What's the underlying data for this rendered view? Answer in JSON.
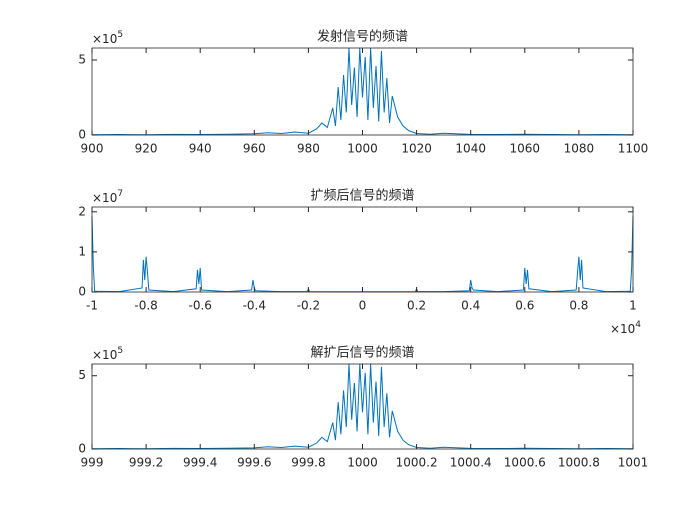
{
  "chart_data": [
    {
      "type": "line",
      "title": "发射信号的频谱",
      "color": "#0072bd",
      "x": [
        900,
        910,
        920,
        930,
        940,
        950,
        960,
        965,
        970,
        975,
        980,
        983,
        985,
        987,
        989,
        990,
        991,
        992,
        993,
        994,
        995,
        996,
        997,
        998,
        999,
        1000,
        1001,
        1002,
        1003,
        1004,
        1005,
        1006,
        1007,
        1008,
        1009,
        1010,
        1011,
        1013,
        1015,
        1017,
        1020,
        1025,
        1030,
        1040,
        1050,
        1060,
        1070,
        1080,
        1090,
        1100
      ],
      "values": [
        0.02,
        0.03,
        0.02,
        0.04,
        0.03,
        0.05,
        0.08,
        0.15,
        0.1,
        0.2,
        0.12,
        0.4,
        0.8,
        0.5,
        1.8,
        0.6,
        3.2,
        1.0,
        4.0,
        1.5,
        5.8,
        2.0,
        4.5,
        1.2,
        5.8,
        2.5,
        5.2,
        1.0,
        5.8,
        1.8,
        4.6,
        0.9,
        5.6,
        1.5,
        3.8,
        0.8,
        2.6,
        1.2,
        0.6,
        0.3,
        0.1,
        0.05,
        0.12,
        0.04,
        0.03,
        0.05,
        0.03,
        0.02,
        0.03,
        0.02
      ],
      "xlim": [
        900,
        1100
      ],
      "xticks": [
        900,
        920,
        940,
        960,
        980,
        1000,
        1020,
        1040,
        1060,
        1080,
        1100
      ],
      "ylim": [
        0,
        5.8
      ],
      "yticks": [
        0,
        5
      ],
      "y_multiplier": {
        "base": "×10",
        "exponent": "5"
      }
    },
    {
      "type": "line",
      "title": "扩频后信号的频谱",
      "color": "#0072bd",
      "x": [
        -1,
        -0.995,
        -0.99,
        -0.9,
        -0.815,
        -0.81,
        -0.805,
        -0.8,
        -0.795,
        -0.79,
        -0.7,
        -0.615,
        -0.61,
        -0.605,
        -0.6,
        -0.595,
        -0.5,
        -0.41,
        -0.405,
        -0.4,
        -0.395,
        -0.3,
        -0.205,
        -0.2,
        -0.195,
        -0.1,
        0,
        0.1,
        0.195,
        0.2,
        0.205,
        0.3,
        0.395,
        0.4,
        0.405,
        0.41,
        0.5,
        0.595,
        0.6,
        0.605,
        0.61,
        0.615,
        0.7,
        0.79,
        0.795,
        0.8,
        0.805,
        0.81,
        0.815,
        0.9,
        0.99,
        0.995,
        1
      ],
      "values": [
        1.9,
        0.6,
        0.02,
        0.01,
        0.1,
        0.8,
        0.3,
        0.88,
        0.5,
        0.05,
        0.01,
        0.08,
        0.55,
        0.2,
        0.6,
        0.05,
        0.01,
        0.05,
        0.3,
        0.1,
        0.03,
        0.01,
        0.01,
        0.07,
        0.01,
        0.005,
        0.005,
        0.005,
        0.01,
        0.07,
        0.01,
        0.01,
        0.03,
        0.3,
        0.1,
        0.05,
        0.01,
        0.05,
        0.6,
        0.2,
        0.55,
        0.08,
        0.01,
        0.05,
        0.5,
        0.88,
        0.3,
        0.8,
        0.1,
        0.01,
        0.02,
        0.6,
        1.9
      ],
      "xlim": [
        -1,
        1
      ],
      "xticks": [
        -1,
        -0.8,
        -0.6,
        -0.4,
        -0.2,
        0,
        0.2,
        0.4,
        0.6,
        0.8,
        1
      ],
      "ylim": [
        0,
        2.12
      ],
      "yticks": [
        0,
        1,
        2
      ],
      "y_multiplier": {
        "base": "×10",
        "exponent": "7"
      },
      "x_multiplier": {
        "base": "×10",
        "exponent": "4"
      }
    },
    {
      "type": "line",
      "title": "解扩后信号的频谱",
      "color": "#0072bd",
      "x": [
        999,
        999.1,
        999.2,
        999.3,
        999.4,
        999.5,
        999.6,
        999.65,
        999.7,
        999.75,
        999.8,
        999.83,
        999.85,
        999.87,
        999.89,
        999.9,
        999.91,
        999.92,
        999.93,
        999.94,
        999.95,
        999.96,
        999.97,
        999.98,
        999.99,
        1000,
        1000.01,
        1000.02,
        1000.03,
        1000.04,
        1000.05,
        1000.06,
        1000.07,
        1000.08,
        1000.09,
        1000.1,
        1000.11,
        1000.13,
        1000.15,
        1000.17,
        1000.2,
        1000.25,
        1000.3,
        1000.4,
        1000.5,
        1000.6,
        1000.7,
        1000.8,
        1000.9,
        1001
      ],
      "values": [
        0.02,
        0.03,
        0.02,
        0.04,
        0.03,
        0.05,
        0.08,
        0.15,
        0.1,
        0.2,
        0.12,
        0.4,
        0.8,
        0.5,
        1.8,
        0.6,
        3.2,
        1.0,
        4.0,
        1.5,
        5.8,
        2.0,
        4.5,
        1.2,
        5.8,
        2.5,
        5.2,
        1.0,
        5.8,
        1.8,
        4.6,
        0.9,
        5.6,
        1.5,
        3.8,
        0.8,
        2.6,
        1.2,
        0.6,
        0.3,
        0.1,
        0.05,
        0.12,
        0.04,
        0.03,
        0.05,
        0.03,
        0.02,
        0.03,
        0.02
      ],
      "xlim": [
        999,
        1001
      ],
      "xticks": [
        999,
        999.2,
        999.4,
        999.6,
        999.8,
        1000,
        1000.2,
        1000.4,
        1000.6,
        1000.8,
        1001
      ],
      "ylim": [
        0,
        5.8
      ],
      "yticks": [
        0,
        5
      ],
      "y_multiplier": {
        "base": "×10",
        "exponent": "5"
      }
    }
  ]
}
